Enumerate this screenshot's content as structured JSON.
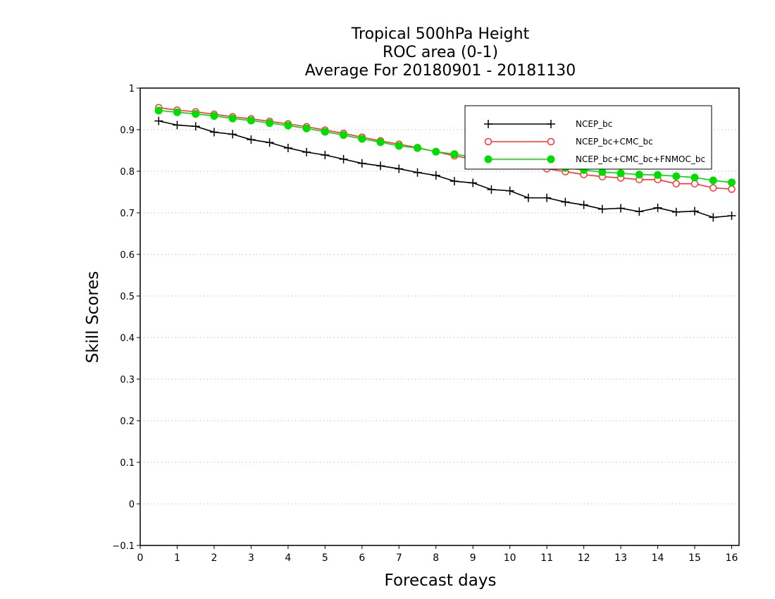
{
  "chart_data": {
    "type": "line",
    "title": [
      "Tropical 500hPa Height",
      "ROC area (0-1)",
      "Average For 20180901 - 20181130"
    ],
    "xlabel": "Forecast days",
    "ylabel": "Skill Scores",
    "xlim": [
      0,
      16.2
    ],
    "ylim": [
      -0.1,
      1.0
    ],
    "xticks": [
      "0",
      "1",
      "2",
      "3",
      "4",
      "5",
      "6",
      "7",
      "8",
      "9",
      "10",
      "11",
      "12",
      "13",
      "14",
      "15",
      "16"
    ],
    "yticks": [
      "−0.1",
      "0",
      "0.1",
      "0.2",
      "0.3",
      "0.4",
      "0.5",
      "0.6",
      "0.7",
      "0.8",
      "0.9",
      "1"
    ],
    "grid": "horizontal dotted",
    "legend_position": "top-right",
    "x": [
      0.5,
      1.0,
      1.5,
      2.0,
      2.5,
      3.0,
      3.5,
      4.0,
      4.5,
      5.0,
      5.5,
      6.0,
      6.5,
      7.0,
      7.5,
      8.0,
      8.5,
      9.0,
      9.5,
      10.0,
      10.5,
      11.0,
      11.5,
      12.0,
      12.5,
      13.0,
      13.5,
      14.0,
      14.5,
      15.0,
      15.5,
      16.0
    ],
    "series": [
      {
        "name": "NCEP_bc",
        "color": "#000000",
        "marker": "plus",
        "values": [
          0.921,
          0.911,
          0.908,
          0.894,
          0.889,
          0.876,
          0.869,
          0.856,
          0.846,
          0.839,
          0.829,
          0.819,
          0.813,
          0.806,
          0.797,
          0.79,
          0.776,
          0.772,
          0.756,
          0.753,
          0.736,
          0.736,
          0.726,
          0.719,
          0.709,
          0.711,
          0.703,
          0.712,
          0.702,
          0.704,
          0.689,
          0.693
        ]
      },
      {
        "name": "NCEP_bc+CMC_bc",
        "color": "#ff3333",
        "marker": "open-circle",
        "values": [
          0.953,
          0.947,
          0.943,
          0.937,
          0.931,
          0.926,
          0.92,
          0.914,
          0.907,
          0.899,
          0.891,
          0.882,
          0.873,
          0.865,
          0.857,
          0.847,
          0.837,
          0.829,
          0.825,
          0.821,
          0.813,
          0.806,
          0.799,
          0.792,
          0.787,
          0.784,
          0.78,
          0.78,
          0.77,
          0.77,
          0.76,
          0.757
        ]
      },
      {
        "name": "NCEP_bc+CMC_bc+FNMOC_bc",
        "color": "#00dd00",
        "marker": "filled-circle",
        "values": [
          0.946,
          0.942,
          0.938,
          0.933,
          0.927,
          0.922,
          0.916,
          0.91,
          0.903,
          0.895,
          0.887,
          0.878,
          0.87,
          0.861,
          0.856,
          0.847,
          0.841,
          0.834,
          0.83,
          0.826,
          0.819,
          0.814,
          0.808,
          0.803,
          0.798,
          0.795,
          0.792,
          0.791,
          0.788,
          0.785,
          0.778,
          0.773
        ]
      }
    ]
  }
}
